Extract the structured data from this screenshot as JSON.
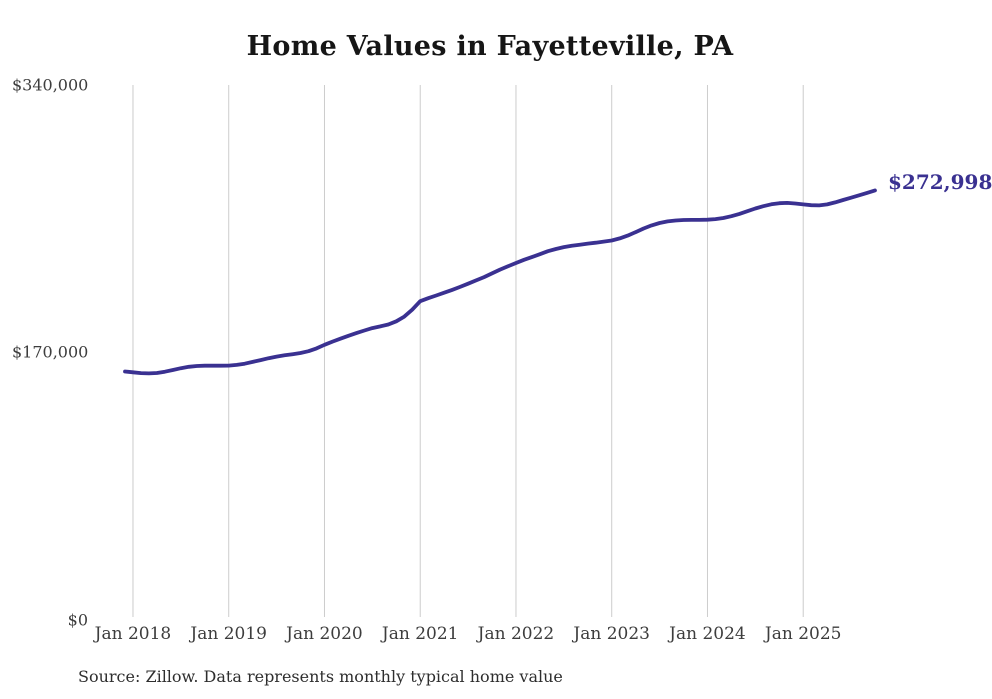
{
  "title": "Home Values in Fayetteville, PA",
  "source_note": "Source: Zillow. Data represents monthly typical home value",
  "end_label": "$272,998",
  "latest_value": 272998,
  "colors": {
    "line": "#3a3191",
    "grid": "#cccccc",
    "title_text": "#161616",
    "axis_text": "#3d3d3d",
    "source_text": "#2e2e2e"
  },
  "y_axis": {
    "ticks": [
      "$0",
      "$170,000",
      "$340,000"
    ],
    "min": 0,
    "max": 340000
  },
  "x_axis": {
    "ticks": [
      "Jan 2018",
      "Jan 2019",
      "Jan 2020",
      "Jan 2021",
      "Jan 2022",
      "Jan 2023",
      "Jan 2024",
      "Jan 2025"
    ]
  },
  "chart_data": {
    "type": "line",
    "title": "Home Values in Fayetteville, PA",
    "xlabel": "",
    "ylabel": "",
    "ylim": [
      0,
      340000
    ],
    "grid": "vertical-only",
    "legend": "none",
    "frequency": "monthly",
    "start_month": "2017-12",
    "end_month": "2025-10",
    "end_label": "$272,998",
    "months": [
      "2017-12",
      "2018-01",
      "2018-02",
      "2018-03",
      "2018-04",
      "2018-05",
      "2018-06",
      "2018-07",
      "2018-08",
      "2018-09",
      "2018-10",
      "2018-11",
      "2018-12",
      "2019-01",
      "2019-02",
      "2019-03",
      "2019-04",
      "2019-05",
      "2019-06",
      "2019-07",
      "2019-08",
      "2019-09",
      "2019-10",
      "2019-11",
      "2019-12",
      "2020-01",
      "2020-02",
      "2020-03",
      "2020-04",
      "2020-05",
      "2020-06",
      "2020-07",
      "2020-08",
      "2020-09",
      "2020-10",
      "2020-11",
      "2020-12",
      "2021-01",
      "2021-02",
      "2021-03",
      "2021-04",
      "2021-05",
      "2021-06",
      "2021-07",
      "2021-08",
      "2021-09",
      "2021-10",
      "2021-11",
      "2021-12",
      "2022-01",
      "2022-02",
      "2022-03",
      "2022-04",
      "2022-05",
      "2022-06",
      "2022-07",
      "2022-08",
      "2022-09",
      "2022-10",
      "2022-11",
      "2022-12",
      "2023-01",
      "2023-02",
      "2023-03",
      "2023-04",
      "2023-05",
      "2023-06",
      "2023-07",
      "2023-08",
      "2023-09",
      "2023-10",
      "2023-11",
      "2023-12",
      "2024-01",
      "2024-02",
      "2024-03",
      "2024-04",
      "2024-05",
      "2024-06",
      "2024-07",
      "2024-08",
      "2024-09",
      "2024-10",
      "2024-11",
      "2024-12",
      "2025-01",
      "2025-02",
      "2025-03",
      "2025-04",
      "2025-05",
      "2025-06",
      "2025-07",
      "2025-08",
      "2025-09",
      "2025-10"
    ],
    "values": [
      157900,
      157400,
      156900,
      156700,
      157000,
      157800,
      158900,
      160000,
      160900,
      161400,
      161600,
      161700,
      161600,
      161700,
      162100,
      162900,
      164000,
      165200,
      166400,
      167400,
      168200,
      168900,
      169700,
      170800,
      172600,
      174900,
      176900,
      178800,
      180600,
      182300,
      184000,
      185500,
      186600,
      187800,
      189800,
      192800,
      197200,
      202600,
      204500,
      206200,
      208000,
      209800,
      211700,
      213700,
      215800,
      217900,
      220300,
      222700,
      224800,
      226900,
      228900,
      230600,
      232500,
      234400,
      235800,
      237000,
      237900,
      238500,
      239200,
      239800,
      240500,
      241200,
      242500,
      244300,
      246500,
      248800,
      250800,
      252300,
      253300,
      253900,
      254200,
      254300,
      254300,
      254400,
      254800,
      255500,
      256600,
      258100,
      259800,
      261500,
      263000,
      264200,
      264900,
      265100,
      264700,
      264100,
      263600,
      263500,
      264100,
      265400,
      266900,
      268400,
      269900,
      271400,
      272998
    ]
  }
}
